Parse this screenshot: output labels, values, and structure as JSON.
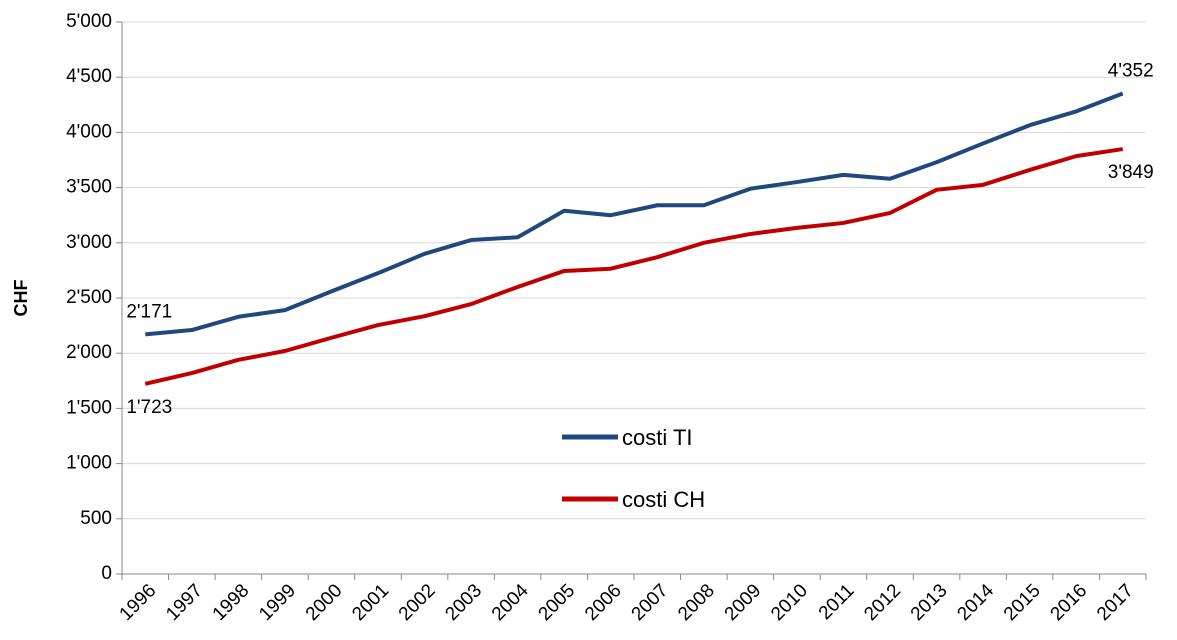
{
  "chart_data": {
    "type": "line",
    "y_label": "CHF",
    "categories": [
      "1996",
      "1997",
      "1998",
      "1999",
      "2000",
      "2001",
      "2002",
      "2003",
      "2004",
      "2005",
      "2006",
      "2007",
      "2008",
      "2009",
      "2010",
      "2011",
      "2012",
      "2013",
      "2014",
      "2015",
      "2016",
      "2017"
    ],
    "series": [
      {
        "name": "costi TI",
        "color": "#1f497d",
        "values": [
          2171,
          2210,
          2330,
          2390,
          2560,
          2725,
          2900,
          3025,
          3050,
          3290,
          3250,
          3340,
          3340,
          3490,
          3550,
          3615,
          3580,
          3730,
          3900,
          4065,
          4190,
          4352
        ],
        "value_labels": [
          "2'171",
          null,
          null,
          null,
          null,
          null,
          null,
          null,
          null,
          null,
          null,
          null,
          null,
          null,
          null,
          null,
          null,
          null,
          null,
          null,
          null,
          "4'352"
        ]
      },
      {
        "name": "costi CH",
        "color": "#c00000",
        "values": [
          1723,
          1820,
          1940,
          2020,
          2140,
          2255,
          2335,
          2445,
          2600,
          2745,
          2765,
          2870,
          3000,
          3080,
          3135,
          3180,
          3270,
          3480,
          3525,
          3660,
          3785,
          3849
        ],
        "value_labels": [
          "1'723",
          null,
          null,
          null,
          null,
          null,
          null,
          null,
          null,
          null,
          null,
          null,
          null,
          null,
          null,
          null,
          null,
          null,
          null,
          null,
          null,
          "3'849"
        ]
      }
    ],
    "ylim": [
      0,
      5000
    ],
    "yticks": [
      0,
      500,
      {
        "value": 1000,
        "label": "1'000"
      },
      {
        "value": 1500,
        "label": "1'500"
      },
      {
        "value": 2000,
        "label": "2'000"
      },
      {
        "value": 2500,
        "label": "2'500"
      },
      {
        "value": 3000,
        "label": "3'000"
      },
      {
        "value": 3500,
        "label": "3'500"
      },
      {
        "value": 4000,
        "label": "4'000"
      },
      {
        "value": 4500,
        "label": "4'500"
      },
      {
        "value": 5000,
        "label": "5'000"
      }
    ],
    "grid": true,
    "legend": "center"
  }
}
